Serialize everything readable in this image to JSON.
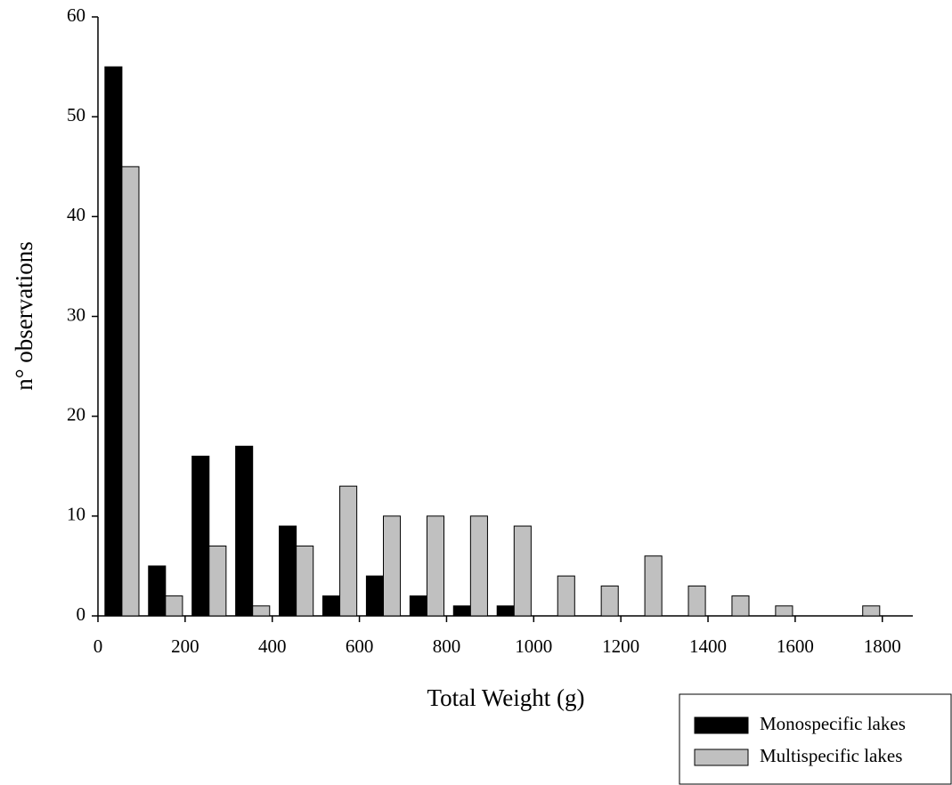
{
  "chart_data": {
    "type": "histogram",
    "xlabel": "Total Weight (g)",
    "ylabel": "n° observations",
    "bins": [
      0,
      100,
      200,
      300,
      400,
      500,
      600,
      700,
      800,
      900,
      1000,
      1100,
      1200,
      1300,
      1400,
      1500,
      1600,
      1700,
      1800
    ],
    "series": [
      {
        "name": "Monospecific lakes",
        "color": "#000000",
        "values": [
          55,
          5,
          16,
          17,
          9,
          2,
          4,
          2,
          1,
          1,
          0,
          0,
          0,
          0,
          0,
          0,
          0,
          0
        ]
      },
      {
        "name": "Multispecific lakes",
        "color": "#c0c0c0",
        "values": [
          45,
          2,
          7,
          1,
          7,
          13,
          10,
          10,
          10,
          9,
          4,
          3,
          6,
          3,
          2,
          1,
          0,
          1
        ]
      }
    ],
    "xlim": [
      0,
      1870
    ],
    "xticks": [
      0,
      200,
      400,
      600,
      800,
      1000,
      1200,
      1400,
      1600,
      1800
    ],
    "ylim": [
      0,
      60
    ],
    "yticks": [
      0,
      10,
      20,
      30,
      40,
      50,
      60
    ],
    "grid": false
  }
}
